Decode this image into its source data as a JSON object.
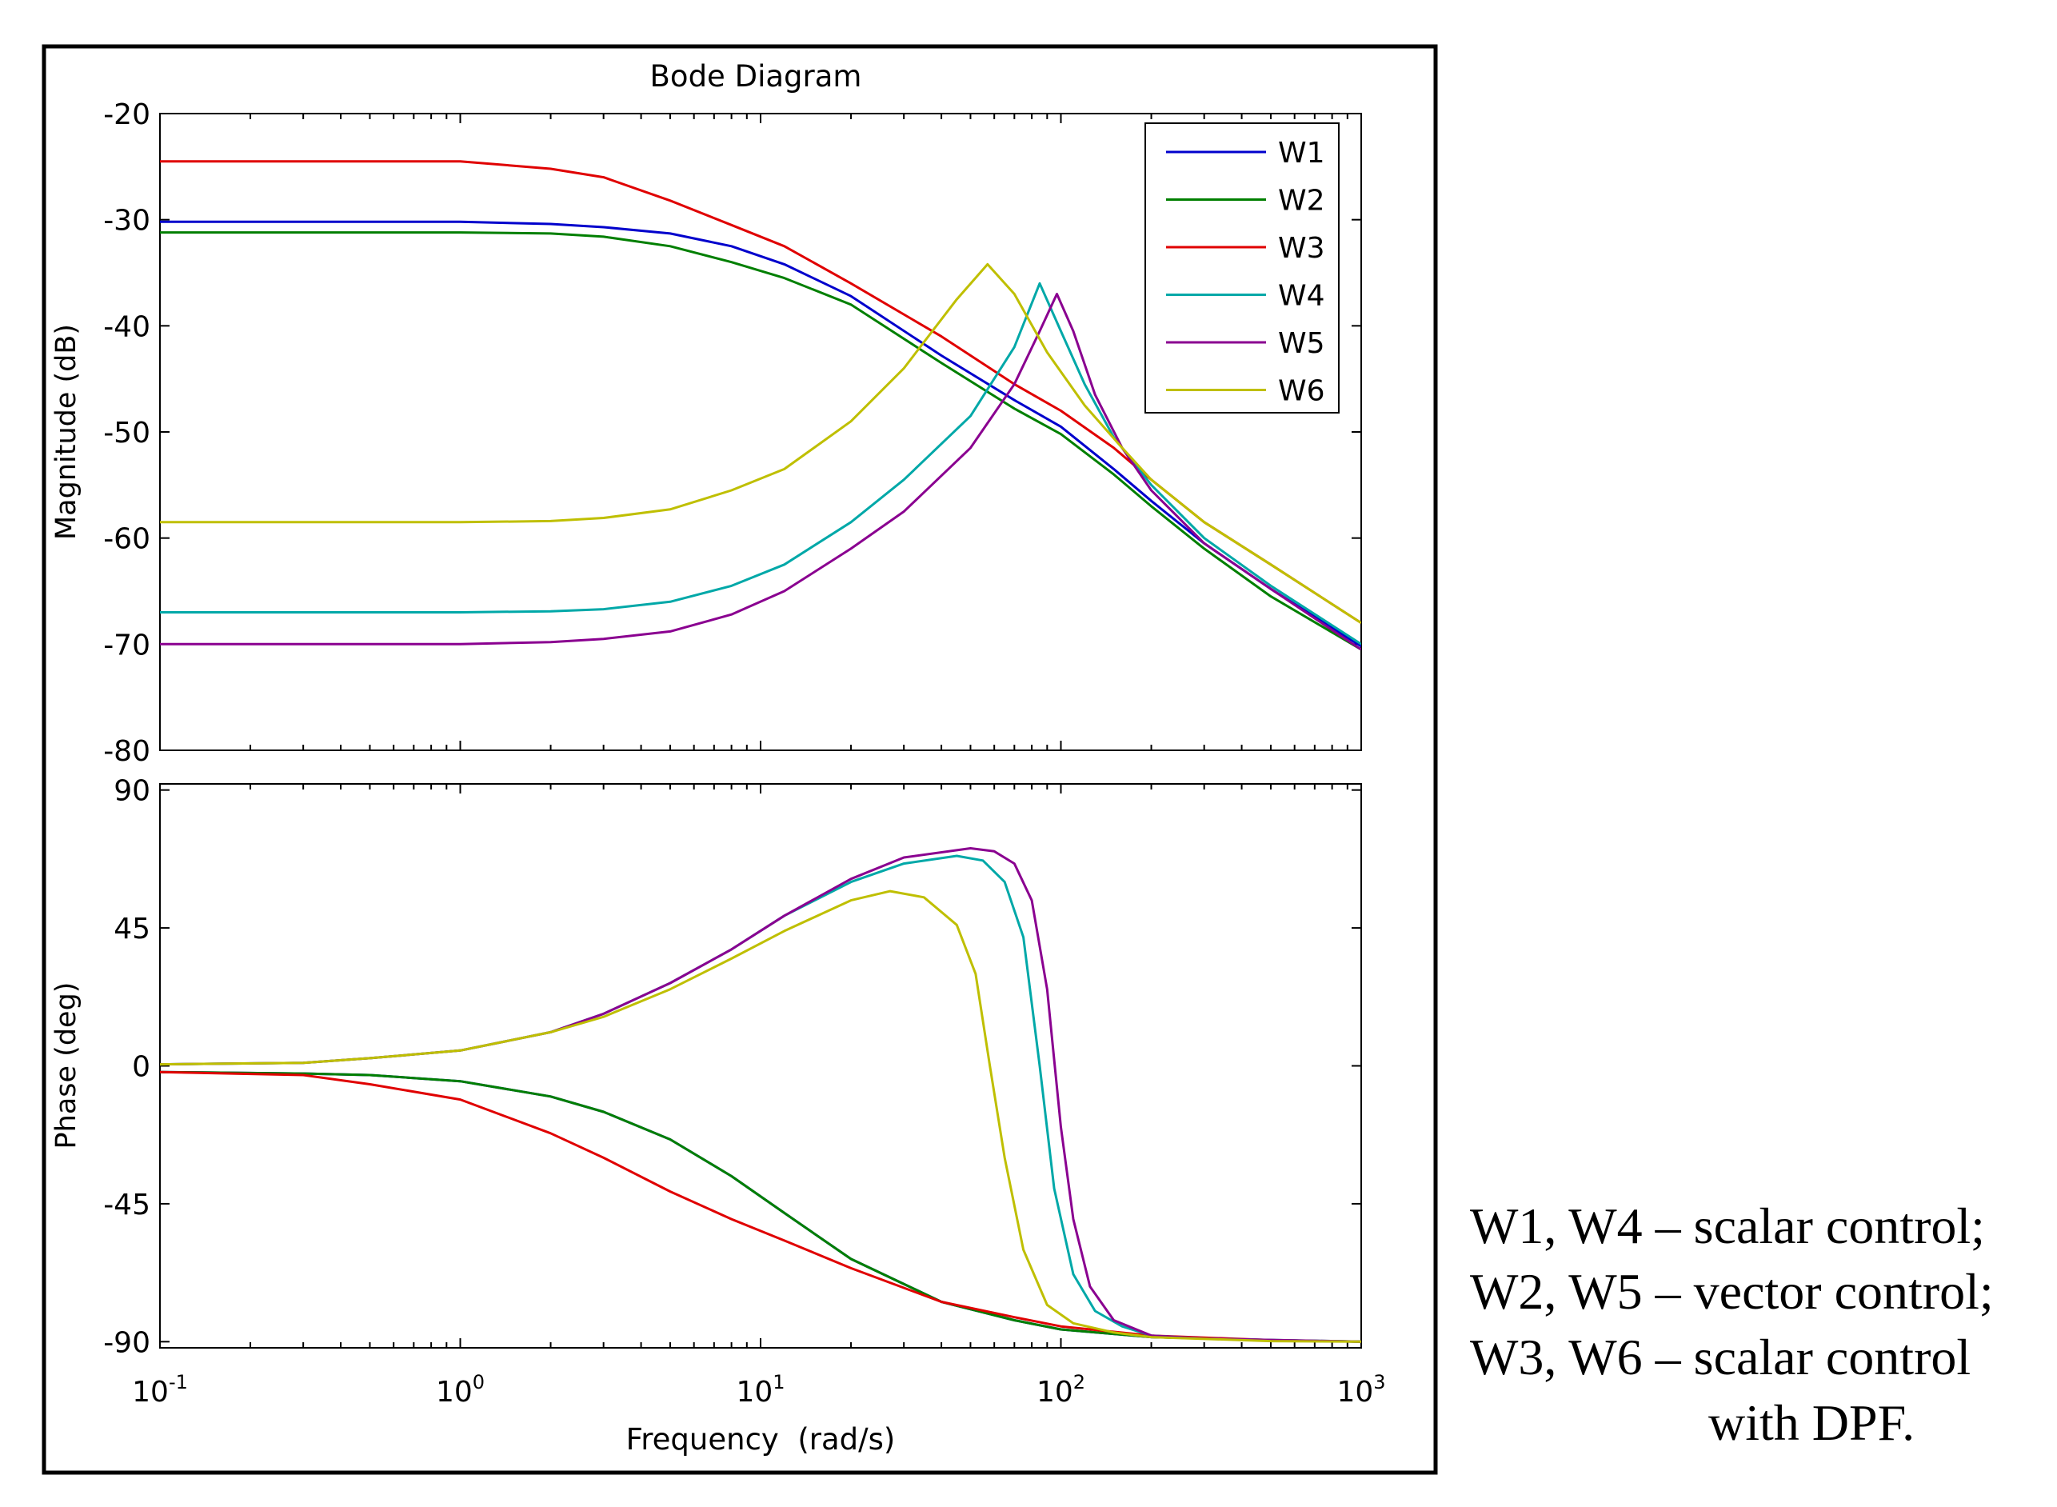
{
  "chart_data": {
    "type": "line",
    "title": "Bode Diagram",
    "xlabel": "Frequency  (rad/s)",
    "xscale": "log",
    "xlim": [
      0.1,
      1000
    ],
    "xticks": [
      {
        "value": 0.1,
        "base": "10",
        "exp": "-1"
      },
      {
        "value": 1,
        "base": "10",
        "exp": "0"
      },
      {
        "value": 10,
        "base": "10",
        "exp": "1"
      },
      {
        "value": 100,
        "base": "10",
        "exp": "2"
      },
      {
        "value": 1000,
        "base": "10",
        "exp": "3"
      }
    ],
    "legend": {
      "location": "top-right",
      "entries": [
        "W1",
        "W2",
        "W3",
        "W4",
        "W5",
        "W6"
      ]
    },
    "colors": {
      "W1": "#0000cc",
      "W2": "#007f00",
      "W3": "#e00000",
      "W4": "#00a8a8",
      "W5": "#8a0090",
      "W6": "#bfbf00"
    },
    "magnitude": {
      "ylabel": "Magnitude (dB)",
      "ylim": [
        -80,
        -20
      ],
      "yticks": [
        -20,
        -30,
        -40,
        -50,
        -60,
        -70,
        -80
      ],
      "series": [
        {
          "name": "W1",
          "points": [
            [
              0.1,
              -30.2
            ],
            [
              0.5,
              -30.2
            ],
            [
              1,
              -30.2
            ],
            [
              2,
              -30.4
            ],
            [
              3,
              -30.7
            ],
            [
              5,
              -31.3
            ],
            [
              8,
              -32.5
            ],
            [
              12,
              -34.2
            ],
            [
              20,
              -37.2
            ],
            [
              40,
              -42.8
            ],
            [
              70,
              -47.0
            ],
            [
              100,
              -49.5
            ],
            [
              150,
              -53.5
            ],
            [
              200,
              -56.5
            ],
            [
              300,
              -60.5
            ],
            [
              500,
              -64.8
            ],
            [
              1000,
              -70.2
            ]
          ]
        },
        {
          "name": "W2",
          "points": [
            [
              0.1,
              -31.2
            ],
            [
              1,
              -31.2
            ],
            [
              2,
              -31.3
            ],
            [
              3,
              -31.6
            ],
            [
              5,
              -32.5
            ],
            [
              8,
              -34.0
            ],
            [
              12,
              -35.5
            ],
            [
              20,
              -38.0
            ],
            [
              40,
              -43.5
            ],
            [
              70,
              -47.8
            ],
            [
              100,
              -50.2
            ],
            [
              150,
              -54.0
            ],
            [
              200,
              -57.0
            ],
            [
              300,
              -61.0
            ],
            [
              500,
              -65.5
            ],
            [
              1000,
              -70.5
            ]
          ]
        },
        {
          "name": "W3",
          "points": [
            [
              0.1,
              -24.5
            ],
            [
              1,
              -24.5
            ],
            [
              2,
              -25.2
            ],
            [
              3,
              -26.0
            ],
            [
              5,
              -28.2
            ],
            [
              8,
              -30.5
            ],
            [
              12,
              -32.5
            ],
            [
              20,
              -36.0
            ],
            [
              40,
              -41.0
            ],
            [
              70,
              -45.5
            ],
            [
              100,
              -48.0
            ],
            [
              150,
              -51.5
            ],
            [
              200,
              -54.5
            ],
            [
              300,
              -58.5
            ],
            [
              500,
              -62.5
            ],
            [
              1000,
              -68.0
            ]
          ]
        },
        {
          "name": "W4",
          "points": [
            [
              0.1,
              -67.0
            ],
            [
              1,
              -67.0
            ],
            [
              2,
              -66.9
            ],
            [
              3,
              -66.7
            ],
            [
              5,
              -66.0
            ],
            [
              8,
              -64.5
            ],
            [
              12,
              -62.5
            ],
            [
              20,
              -58.5
            ],
            [
              30,
              -54.5
            ],
            [
              50,
              -48.5
            ],
            [
              70,
              -42.0
            ],
            [
              85,
              -36.0
            ],
            [
              100,
              -40.5
            ],
            [
              120,
              -45.5
            ],
            [
              150,
              -50.5
            ],
            [
              200,
              -55.0
            ],
            [
              300,
              -60.0
            ],
            [
              500,
              -64.5
            ],
            [
              1000,
              -70.0
            ]
          ]
        },
        {
          "name": "W5",
          "points": [
            [
              0.1,
              -70.0
            ],
            [
              1,
              -70.0
            ],
            [
              2,
              -69.8
            ],
            [
              3,
              -69.5
            ],
            [
              5,
              -68.8
            ],
            [
              8,
              -67.2
            ],
            [
              12,
              -65.0
            ],
            [
              20,
              -61.0
            ],
            [
              30,
              -57.5
            ],
            [
              50,
              -51.5
            ],
            [
              70,
              -45.5
            ],
            [
              85,
              -40.5
            ],
            [
              97,
              -37.0
            ],
            [
              110,
              -40.5
            ],
            [
              130,
              -46.5
            ],
            [
              160,
              -51.5
            ],
            [
              200,
              -55.5
            ],
            [
              300,
              -60.5
            ],
            [
              500,
              -64.8
            ],
            [
              1000,
              -70.5
            ]
          ]
        },
        {
          "name": "W6",
          "points": [
            [
              0.1,
              -58.5
            ],
            [
              1,
              -58.5
            ],
            [
              2,
              -58.4
            ],
            [
              3,
              -58.1
            ],
            [
              5,
              -57.3
            ],
            [
              8,
              -55.5
            ],
            [
              12,
              -53.5
            ],
            [
              20,
              -49.0
            ],
            [
              30,
              -44.0
            ],
            [
              45,
              -37.5
            ],
            [
              57,
              -34.2
            ],
            [
              70,
              -37.0
            ],
            [
              90,
              -42.5
            ],
            [
              120,
              -47.5
            ],
            [
              160,
              -51.5
            ],
            [
              200,
              -54.5
            ],
            [
              300,
              -58.5
            ],
            [
              500,
              -62.5
            ],
            [
              1000,
              -68.0
            ]
          ]
        }
      ]
    },
    "phase": {
      "ylabel": "Phase (deg)",
      "ylim": [
        -92,
        92
      ],
      "yticks": [
        90,
        45,
        0,
        -45,
        -90
      ],
      "series": [
        {
          "name": "W1",
          "points": [
            [
              0.1,
              -2
            ],
            [
              0.3,
              -2.5
            ],
            [
              0.5,
              -3
            ],
            [
              1,
              -5
            ],
            [
              2,
              -10
            ],
            [
              3,
              -15
            ],
            [
              5,
              -24
            ],
            [
              8,
              -36
            ],
            [
              12,
              -48
            ],
            [
              20,
              -63
            ],
            [
              40,
              -77
            ],
            [
              70,
              -83
            ],
            [
              100,
              -86
            ],
            [
              200,
              -88.5
            ],
            [
              500,
              -89.5
            ],
            [
              1000,
              -90
            ]
          ]
        },
        {
          "name": "W2",
          "points": [
            [
              0.1,
              -2
            ],
            [
              0.3,
              -2.5
            ],
            [
              0.5,
              -3
            ],
            [
              1,
              -5
            ],
            [
              2,
              -10
            ],
            [
              3,
              -15
            ],
            [
              5,
              -24
            ],
            [
              8,
              -36
            ],
            [
              12,
              -48
            ],
            [
              20,
              -63
            ],
            [
              40,
              -77
            ],
            [
              70,
              -83
            ],
            [
              100,
              -86
            ],
            [
              200,
              -88.5
            ],
            [
              500,
              -89.5
            ],
            [
              1000,
              -90
            ]
          ]
        },
        {
          "name": "W3",
          "points": [
            [
              0.1,
              -2
            ],
            [
              0.3,
              -3
            ],
            [
              0.5,
              -6
            ],
            [
              1,
              -11
            ],
            [
              2,
              -22
            ],
            [
              3,
              -30
            ],
            [
              5,
              -41
            ],
            [
              8,
              -50
            ],
            [
              12,
              -57
            ],
            [
              20,
              -66
            ],
            [
              40,
              -77
            ],
            [
              70,
              -82
            ],
            [
              100,
              -85
            ],
            [
              200,
              -88
            ],
            [
              500,
              -89.5
            ],
            [
              1000,
              -90
            ]
          ]
        },
        {
          "name": "W4",
          "points": [
            [
              0.1,
              0.5
            ],
            [
              0.3,
              1
            ],
            [
              0.5,
              2.5
            ],
            [
              1,
              5
            ],
            [
              2,
              11
            ],
            [
              3,
              17
            ],
            [
              5,
              27
            ],
            [
              8,
              38
            ],
            [
              12,
              49
            ],
            [
              20,
              60
            ],
            [
              30,
              66
            ],
            [
              45,
              68.5
            ],
            [
              55,
              67
            ],
            [
              65,
              60
            ],
            [
              75,
              42
            ],
            [
              85,
              0
            ],
            [
              95,
              -40
            ],
            [
              110,
              -68
            ],
            [
              130,
              -80
            ],
            [
              160,
              -85
            ],
            [
              200,
              -88
            ],
            [
              300,
              -89
            ],
            [
              1000,
              -90
            ]
          ]
        },
        {
          "name": "W5",
          "points": [
            [
              0.1,
              0.5
            ],
            [
              0.3,
              1
            ],
            [
              0.5,
              2.5
            ],
            [
              1,
              5
            ],
            [
              2,
              11
            ],
            [
              3,
              17
            ],
            [
              5,
              27
            ],
            [
              8,
              38
            ],
            [
              12,
              49
            ],
            [
              20,
              61
            ],
            [
              30,
              68
            ],
            [
              50,
              71
            ],
            [
              60,
              70
            ],
            [
              70,
              66
            ],
            [
              80,
              54
            ],
            [
              90,
              25
            ],
            [
              100,
              -20
            ],
            [
              110,
              -50
            ],
            [
              125,
              -72
            ],
            [
              150,
              -83
            ],
            [
              200,
              -88
            ],
            [
              300,
              -89
            ],
            [
              1000,
              -90
            ]
          ]
        },
        {
          "name": "W6",
          "points": [
            [
              0.1,
              0.5
            ],
            [
              0.3,
              1
            ],
            [
              0.5,
              2.5
            ],
            [
              1,
              5
            ],
            [
              2,
              11
            ],
            [
              3,
              16
            ],
            [
              5,
              25
            ],
            [
              8,
              35
            ],
            [
              12,
              44
            ],
            [
              20,
              54
            ],
            [
              27,
              57
            ],
            [
              35,
              55
            ],
            [
              45,
              46
            ],
            [
              52,
              30
            ],
            [
              58,
              0
            ],
            [
              65,
              -30
            ],
            [
              75,
              -60
            ],
            [
              90,
              -78
            ],
            [
              110,
              -84
            ],
            [
              150,
              -87
            ],
            [
              200,
              -88.5
            ],
            [
              500,
              -89.8
            ],
            [
              1000,
              -90
            ]
          ]
        }
      ]
    }
  },
  "caption": {
    "line1": "W1, W4 – scalar control;",
    "line2": "W2, W5 – vector control;",
    "line3": "W3, W6 – scalar control",
    "line4": "with DPF."
  }
}
